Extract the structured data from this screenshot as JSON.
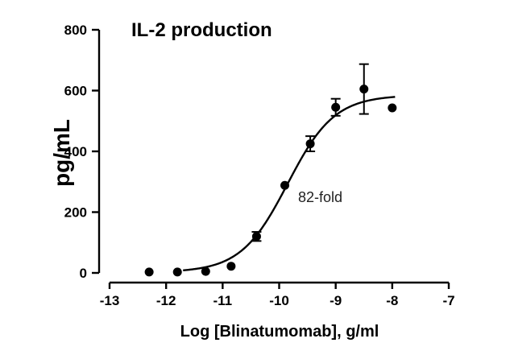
{
  "chart_data": {
    "type": "scatter",
    "title": "IL-2 production",
    "xlabel": "Log [Blinatumomab], g/ml",
    "ylabel": "pg/mL",
    "xlim": [
      -13,
      -7
    ],
    "ylim": [
      0,
      800
    ],
    "x_ticks": [
      "-13",
      "-12",
      "-11",
      "-10",
      "-9",
      "-8",
      "-7"
    ],
    "y_ticks": [
      "0",
      "200",
      "400",
      "600",
      "800"
    ],
    "annotation": "82-fold",
    "series": [
      {
        "x": [
          -12.3,
          -11.8,
          -11.3,
          -10.85,
          -10.4,
          -9.9,
          -9.45,
          -9.0,
          -8.5,
          -8.0
        ],
        "y": [
          3,
          3,
          5,
          22,
          120,
          288,
          425,
          545,
          605,
          543
        ],
        "err": [
          0,
          0,
          0,
          0,
          15,
          0,
          25,
          28,
          82,
          0
        ]
      }
    ],
    "fit_curve": {
      "bottom": 2,
      "top": 585,
      "logEC50": -9.85,
      "hill": 1.05
    },
    "grid": false
  }
}
